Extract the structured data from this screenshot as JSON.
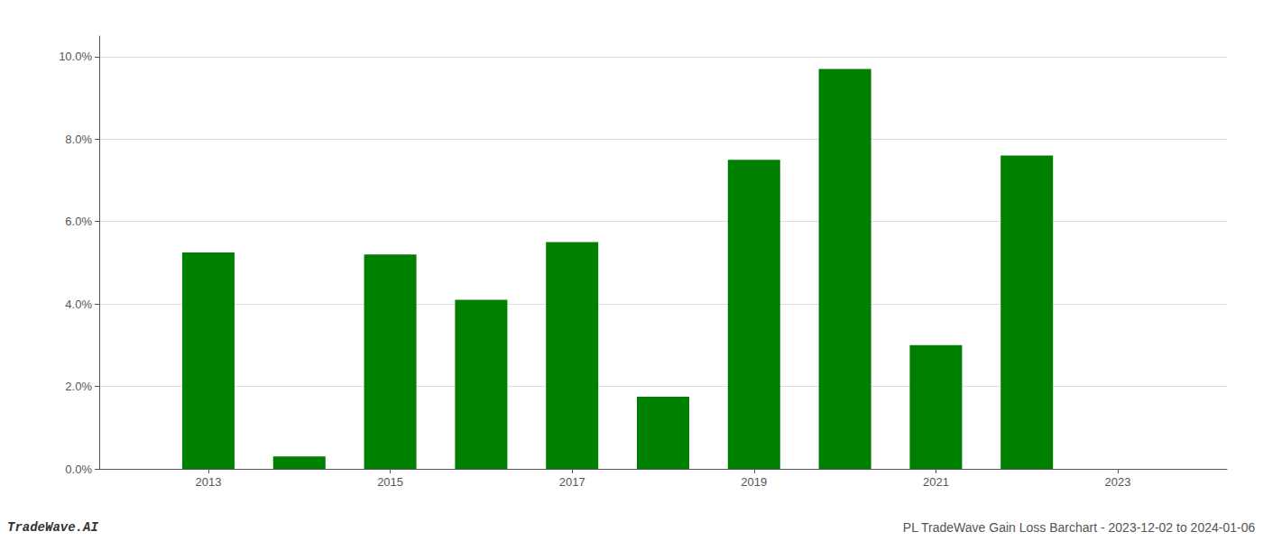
{
  "chart_data": {
    "type": "bar",
    "x": [
      2013,
      2014,
      2015,
      2016,
      2017,
      2018,
      2019,
      2020,
      2021,
      2022,
      2023
    ],
    "values": [
      0.0525,
      0.003,
      0.052,
      0.041,
      0.055,
      0.0175,
      0.075,
      0.097,
      0.03,
      0.076,
      0.0
    ],
    "color": "#008000",
    "xlim": [
      2011.8,
      2024.2
    ],
    "xticks": [
      2013,
      2015,
      2017,
      2019,
      2021,
      2023
    ],
    "ylim": [
      0,
      0.105
    ],
    "yticks": [
      {
        "value": 0.0,
        "label": "0.0%"
      },
      {
        "value": 0.02,
        "label": "2.0%"
      },
      {
        "value": 0.04,
        "label": "4.0%"
      },
      {
        "value": 0.06,
        "label": "6.0%"
      },
      {
        "value": 0.08,
        "label": "8.0%"
      },
      {
        "value": 0.1,
        "label": "10.0%"
      }
    ],
    "grid": true,
    "annotations": [
      "TradeWave.AI",
      "PL TradeWave Gain Loss Barchart - 2023-12-02 to 2024-01-06"
    ]
  }
}
